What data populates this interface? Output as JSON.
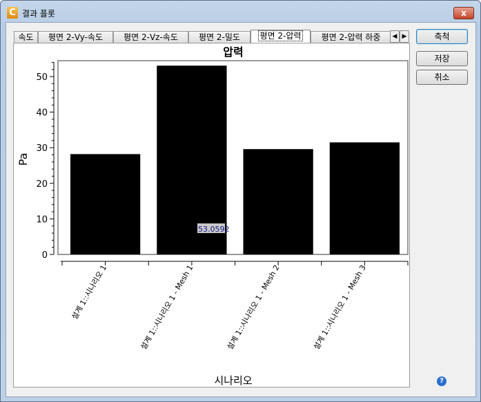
{
  "window": {
    "title": "결과 플롯",
    "close_label": "x"
  },
  "tabs": [
    {
      "label": "속도"
    },
    {
      "label": "평면 2-Vy-속도"
    },
    {
      "label": "평면 2-Vz-속도"
    },
    {
      "label": "평면 2-밀도"
    },
    {
      "label": "평면 2-압력",
      "active": true
    },
    {
      "label": "평면 2-압력 하중"
    }
  ],
  "tab_scroll": {
    "left": "◀",
    "right": "▶"
  },
  "buttons": {
    "scale": "축척",
    "save": "저장",
    "cancel": "취소"
  },
  "help_label": "?",
  "chart_data": {
    "type": "bar",
    "title": "압력",
    "xlabel": "시나리오",
    "ylabel": "Pa",
    "categories": [
      "설계 1::시나리오 1",
      "설계 1::시나리오 1 - Mesh 1",
      "설계 1::시나리오 1 - Mesh 2",
      "설계 1::시나리오 1 - Mesh 3"
    ],
    "values": [
      28.2,
      53.0592,
      29.6,
      31.5
    ],
    "ylim": [
      0,
      55
    ],
    "yticks": [
      0,
      10,
      20,
      30,
      40,
      50
    ],
    "bar_color": "#000000",
    "annotation": "53.0592",
    "grid": false
  }
}
